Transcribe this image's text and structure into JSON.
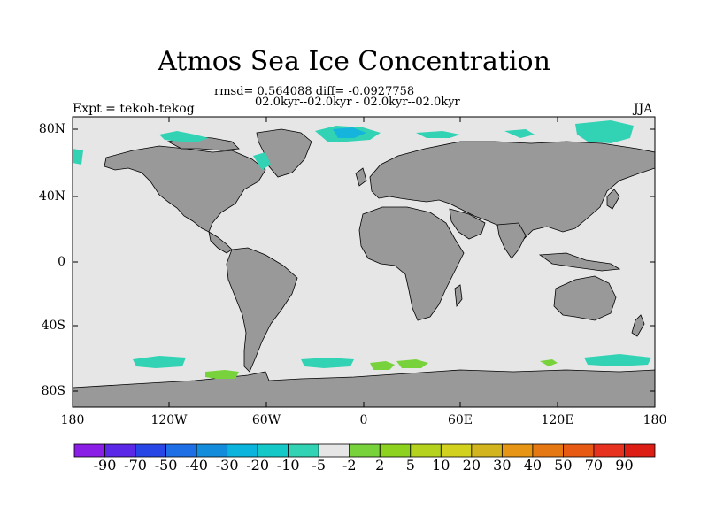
{
  "title": "Atmos Sea Ice Concentration",
  "stats_line1": "rmsd= 0.564088 diff= -0.0927758",
  "stats_line2": "02.0kyr--02.0kyr - 02.0kyr--02.0kyr",
  "experiment_label": "Expt = tekoh-tekog",
  "season": "JJA",
  "lat_labels": [
    "80N",
    "40N",
    "0",
    "40S",
    "80S"
  ],
  "lon_labels": [
    "180",
    "120W",
    "60W",
    "0",
    "60E",
    "120E",
    "180"
  ],
  "colorbar": {
    "boundaries": [
      "-90",
      "-70",
      "-50",
      "-40",
      "-30",
      "-20",
      "-10",
      "-5",
      "-2",
      "2",
      "5",
      "10",
      "20",
      "30",
      "40",
      "50",
      "70",
      "90"
    ],
    "colors": [
      "#8a1ee6",
      "#5a28e6",
      "#2846e6",
      "#1e6ee6",
      "#148cdc",
      "#0ab4dc",
      "#14c8c8",
      "#32d2b4",
      "#e6e6e6",
      "#78d23c",
      "#8cd21e",
      "#b4d21e",
      "#d2d21e",
      "#d2b41e",
      "#e69614",
      "#e67814",
      "#e65a14",
      "#e6321e",
      "#dc1e14"
    ]
  },
  "map_colors": {
    "ocean": "#e6e6e6",
    "land": "#999999",
    "coastline": "#000000",
    "negative_anomaly": "#32d2b4",
    "strong_negative_anomaly": "#14b4dc",
    "positive_anomaly": "#78d23c"
  }
}
